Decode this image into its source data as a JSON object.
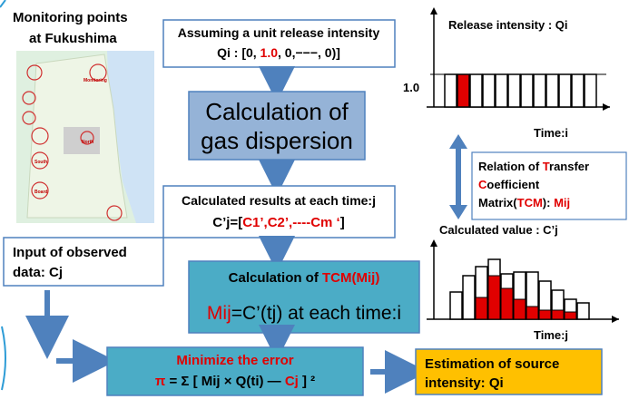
{
  "map": {
    "title": [
      "Monitoring points",
      "at Fukushima"
    ],
    "labels": [
      "Monitoring",
      "North",
      "South",
      "Board"
    ]
  },
  "box_assume": {
    "line1": "Assuming a unit release intensity",
    "line2": [
      "Qi : [0,  ",
      "1.0",
      ",  0,−−−,  0)]"
    ]
  },
  "box_dispersion": {
    "lines": [
      "Calculation of",
      "gas dispersion"
    ]
  },
  "box_results": {
    "line1": "Calculated results at each time:j",
    "line2": [
      "C’j=[",
      "C1’,C2’,----Cm ‘",
      "]"
    ]
  },
  "box_input": {
    "lines": [
      "Input of observed",
      "data: Cj"
    ]
  },
  "box_tcm": {
    "line1": [
      "Calculation of ",
      "TCM(Mij)"
    ],
    "line2": [
      "Mij",
      "=C’(tj) at each time:i"
    ]
  },
  "box_minimize": {
    "line1": "Minimize the error",
    "line2": [
      "π",
      " = Σ [ Mij × Q(ti) ― ",
      "Cj",
      " ] ²"
    ]
  },
  "box_estimation": {
    "lines": [
      "Estimation of source",
      "intensity:  Qi"
    ]
  },
  "chart_release": {
    "title": "Release intensity : Qi",
    "level": "1.0",
    "xlabel": "Time:i"
  },
  "relation": {
    "line1": [
      "Relation of ",
      "T",
      "ransfer"
    ],
    "line2": [
      "C",
      "oefficient"
    ],
    "line3": [
      "Matrix(",
      "TCM",
      "): ",
      "Mij"
    ]
  },
  "chart_calculated": {
    "title": "Calculated value : C’j",
    "xlabel": "Time:j"
  }
}
